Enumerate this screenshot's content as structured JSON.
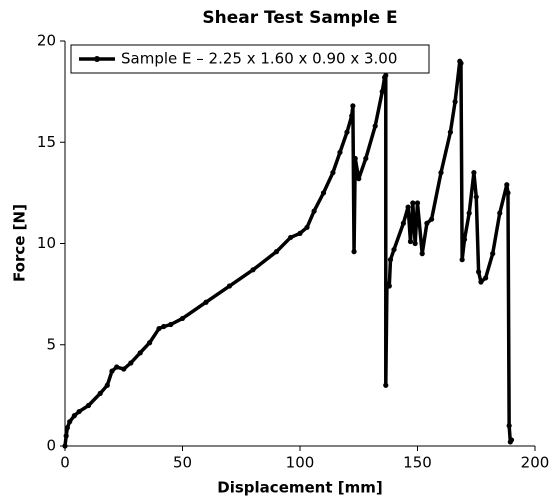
{
  "chart_data": {
    "type": "line",
    "title": "Shear Test Sample E",
    "xlabel": "Displacement [mm]",
    "ylabel": "Force [N]",
    "x": [
      0,
      0.5,
      1,
      2,
      4,
      6,
      10,
      15,
      18,
      20,
      22,
      25,
      28,
      32,
      36,
      40,
      42,
      45,
      50,
      60,
      70,
      80,
      90,
      96,
      100,
      103,
      106,
      110,
      114,
      117,
      120,
      122,
      122.5,
      123,
      123.5,
      125,
      128,
      132,
      135,
      136,
      136.5,
      136.5,
      137,
      138,
      138.5,
      140,
      144,
      146,
      147,
      148,
      149,
      150,
      152,
      154,
      156,
      160,
      164,
      166,
      168,
      168.5,
      169,
      170,
      172,
      174,
      175,
      176,
      177,
      179,
      182,
      185,
      188,
      188.5,
      189,
      189.5,
      190
    ],
    "series": [
      {
        "name": "Sample E – 2.25 x 1.60 x 0.90 x 3.00",
        "color": "#000000",
        "values": [
          0,
          0.5,
          0.9,
          1.2,
          1.5,
          1.7,
          2.0,
          2.6,
          3.0,
          3.7,
          3.9,
          3.8,
          4.1,
          4.6,
          5.1,
          5.8,
          5.9,
          6.0,
          6.3,
          7.1,
          7.9,
          8.7,
          9.6,
          10.3,
          10.5,
          10.8,
          11.6,
          12.5,
          13.5,
          14.5,
          15.5,
          16.3,
          16.8,
          9.6,
          14.2,
          13.2,
          14.2,
          15.8,
          17.5,
          18.2,
          18.3,
          3.0,
          8.0,
          7.9,
          9.2,
          9.7,
          11.0,
          11.8,
          10.1,
          12.0,
          10.0,
          12.0,
          9.5,
          11.0,
          11.2,
          13.5,
          15.5,
          17.0,
          19.0,
          18.9,
          9.2,
          10.2,
          11.5,
          13.5,
          12.3,
          8.6,
          8.1,
          8.3,
          9.5,
          11.5,
          12.9,
          12.5,
          1.0,
          0.2,
          0.3
        ]
      }
    ],
    "xlim": [
      0,
      200
    ],
    "xticks": [
      0,
      50,
      100,
      150,
      200
    ],
    "ylim": [
      0,
      20
    ],
    "yticks": [
      0,
      5,
      10,
      15,
      20
    ],
    "legend": "upper left"
  }
}
